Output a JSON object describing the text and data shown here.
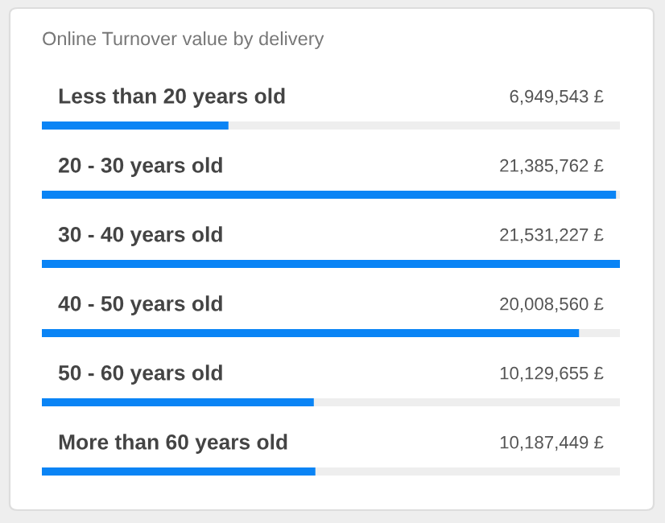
{
  "chart_data": {
    "type": "bar",
    "orientation": "horizontal",
    "title": "Online Turnover value by delivery",
    "categories": [
      "Less than 20 years old",
      "20 - 30 years old",
      "30 - 40 years old",
      "40 - 50 years old",
      "50 - 60 years old",
      "More than 60 years old"
    ],
    "values": [
      6949543,
      21385762,
      21531227,
      20008560,
      10129655,
      10187449
    ],
    "value_labels": [
      "6,949,543 £",
      "21,385,762 £",
      "21,531,227 £",
      "20,008,560 £",
      "10,129,655 £",
      "10,187,449 £"
    ],
    "color": "#0a84f5",
    "xlim": [
      0,
      21531227
    ]
  }
}
